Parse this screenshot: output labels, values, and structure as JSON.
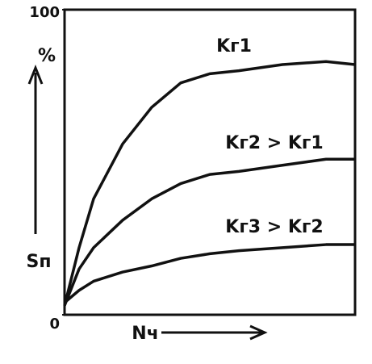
{
  "chart_data": {
    "type": "line",
    "y_label": "Sп",
    "y_unit": "%",
    "x_label": "Nч",
    "x": [
      0,
      5,
      10,
      20,
      30,
      40,
      50,
      60,
      75,
      90,
      100
    ],
    "xlim": [
      0,
      100
    ],
    "ylim": [
      0,
      100
    ],
    "yticks": [
      0,
      100
    ],
    "series": [
      {
        "name": "Kг1",
        "color": "#111111",
        "values": [
          3,
          22,
          38,
          56,
          68,
          76,
          79,
          80,
          82,
          83,
          82
        ]
      },
      {
        "name": "Kг2 > Kг1",
        "color": "#111111",
        "values": [
          3,
          15,
          22,
          31,
          38,
          43,
          46,
          47,
          49,
          51,
          51
        ]
      },
      {
        "name": "Kг3 > Kг2",
        "color": "#111111",
        "values": [
          4,
          8,
          11,
          14,
          16,
          18.5,
          20,
          21,
          22,
          23,
          23
        ]
      }
    ]
  }
}
